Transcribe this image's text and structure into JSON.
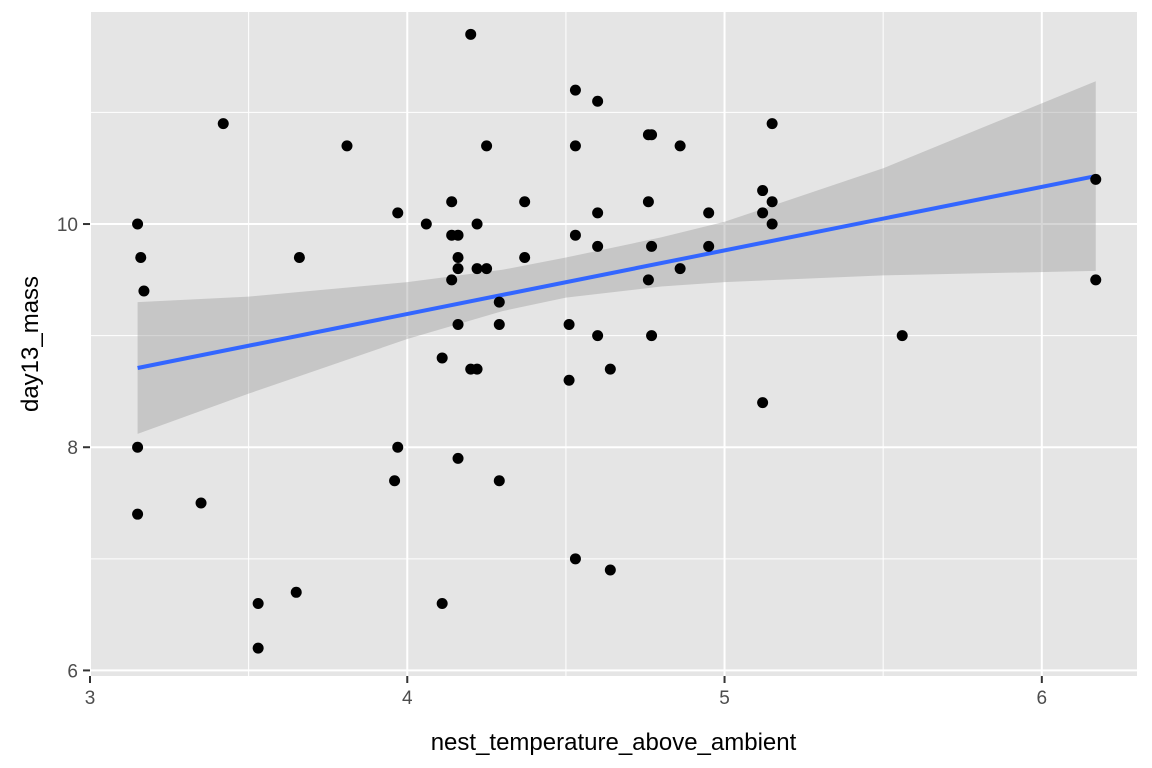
{
  "chart_data": {
    "type": "scatter",
    "title": "",
    "xlabel": "nest_temperature_above_ambient",
    "ylabel": "day13_mass",
    "xlim": [
      3,
      6.3
    ],
    "ylim": [
      5.95,
      11.9
    ],
    "x_ticks": [
      3,
      4,
      5,
      6
    ],
    "y_ticks": [
      6,
      8,
      10
    ],
    "x_tick_labels": [
      "3",
      "4",
      "5",
      "6"
    ],
    "y_tick_labels": [
      "6",
      "8",
      "10"
    ],
    "grid": true,
    "legend": "none",
    "colors": {
      "panel_background": "#e5e5e5",
      "grid_line": "#ffffff",
      "point": "#000000",
      "fit_line": "#3366ff",
      "confidence_band": "#999999"
    },
    "points": [
      {
        "x": 3.15,
        "y": 10.0
      },
      {
        "x": 3.15,
        "y": 8.0
      },
      {
        "x": 3.15,
        "y": 7.4
      },
      {
        "x": 3.16,
        "y": 9.7
      },
      {
        "x": 3.17,
        "y": 9.4
      },
      {
        "x": 3.35,
        "y": 7.5
      },
      {
        "x": 3.42,
        "y": 10.9
      },
      {
        "x": 3.53,
        "y": 6.6
      },
      {
        "x": 3.53,
        "y": 6.2
      },
      {
        "x": 3.65,
        "y": 6.7
      },
      {
        "x": 3.66,
        "y": 9.7
      },
      {
        "x": 3.81,
        "y": 10.7
      },
      {
        "x": 3.96,
        "y": 7.7
      },
      {
        "x": 3.97,
        "y": 10.1
      },
      {
        "x": 3.97,
        "y": 8.0
      },
      {
        "x": 4.06,
        "y": 10.0
      },
      {
        "x": 4.11,
        "y": 8.8
      },
      {
        "x": 4.11,
        "y": 6.6
      },
      {
        "x": 4.14,
        "y": 10.2
      },
      {
        "x": 4.14,
        "y": 9.9
      },
      {
        "x": 4.14,
        "y": 9.5
      },
      {
        "x": 4.16,
        "y": 9.9
      },
      {
        "x": 4.16,
        "y": 9.7
      },
      {
        "x": 4.16,
        "y": 9.6
      },
      {
        "x": 4.16,
        "y": 9.1
      },
      {
        "x": 4.16,
        "y": 7.9
      },
      {
        "x": 4.2,
        "y": 11.7
      },
      {
        "x": 4.2,
        "y": 8.7
      },
      {
        "x": 4.22,
        "y": 10.0
      },
      {
        "x": 4.22,
        "y": 9.6
      },
      {
        "x": 4.22,
        "y": 8.7
      },
      {
        "x": 4.25,
        "y": 10.7
      },
      {
        "x": 4.25,
        "y": 9.6
      },
      {
        "x": 4.29,
        "y": 9.3
      },
      {
        "x": 4.29,
        "y": 9.1
      },
      {
        "x": 4.29,
        "y": 7.7
      },
      {
        "x": 4.37,
        "y": 10.2
      },
      {
        "x": 4.37,
        "y": 9.7
      },
      {
        "x": 4.51,
        "y": 9.1
      },
      {
        "x": 4.51,
        "y": 8.6
      },
      {
        "x": 4.53,
        "y": 11.2
      },
      {
        "x": 4.53,
        "y": 10.7
      },
      {
        "x": 4.53,
        "y": 9.9
      },
      {
        "x": 4.53,
        "y": 7.0
      },
      {
        "x": 4.6,
        "y": 11.1
      },
      {
        "x": 4.6,
        "y": 10.1
      },
      {
        "x": 4.6,
        "y": 9.8
      },
      {
        "x": 4.6,
        "y": 9.0
      },
      {
        "x": 4.64,
        "y": 8.7
      },
      {
        "x": 4.64,
        "y": 6.9
      },
      {
        "x": 4.76,
        "y": 10.8
      },
      {
        "x": 4.76,
        "y": 10.2
      },
      {
        "x": 4.76,
        "y": 9.5
      },
      {
        "x": 4.77,
        "y": 10.8
      },
      {
        "x": 4.77,
        "y": 9.8
      },
      {
        "x": 4.77,
        "y": 9.0
      },
      {
        "x": 4.86,
        "y": 10.7
      },
      {
        "x": 4.86,
        "y": 9.6
      },
      {
        "x": 4.95,
        "y": 10.1
      },
      {
        "x": 4.95,
        "y": 9.8
      },
      {
        "x": 5.12,
        "y": 10.3
      },
      {
        "x": 5.12,
        "y": 10.1
      },
      {
        "x": 5.12,
        "y": 8.4
      },
      {
        "x": 5.15,
        "y": 10.9
      },
      {
        "x": 5.15,
        "y": 10.2
      },
      {
        "x": 5.15,
        "y": 10.0
      },
      {
        "x": 5.56,
        "y": 9.0
      },
      {
        "x": 6.17,
        "y": 10.4
      },
      {
        "x": 6.17,
        "y": 9.5
      }
    ],
    "fit_line": {
      "x": [
        3.15,
        6.17
      ],
      "y": [
        8.71,
        10.43
      ]
    },
    "confidence_band": {
      "x": [
        3.15,
        3.5,
        4.0,
        4.3,
        4.5,
        4.8,
        5.0,
        5.5,
        6.17
      ],
      "lower": [
        8.12,
        8.48,
        8.97,
        9.22,
        9.34,
        9.44,
        9.48,
        9.54,
        9.58
      ],
      "upper": [
        9.3,
        9.35,
        9.48,
        9.59,
        9.7,
        9.88,
        10.02,
        10.5,
        11.28
      ]
    }
  }
}
